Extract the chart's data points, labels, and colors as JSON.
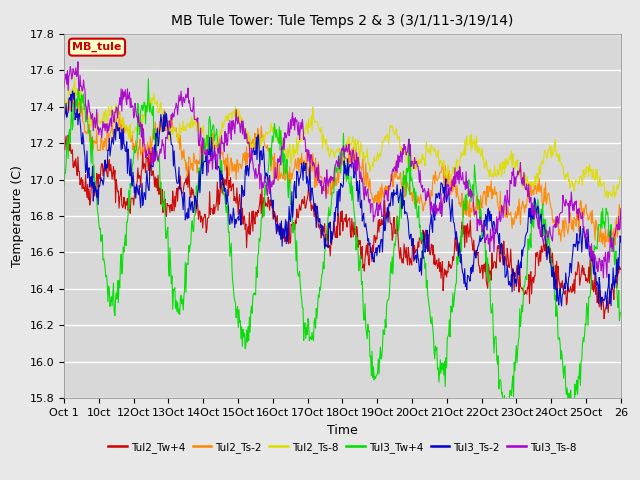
{
  "title": "MB Tule Tower: Tule Temps 2 & 3 (3/1/11-3/19/14)",
  "xlabel": "Time",
  "ylabel": "Temperature (C)",
  "ylim": [
    15.8,
    17.8
  ],
  "yticks": [
    15.8,
    16.0,
    16.2,
    16.4,
    16.6,
    16.8,
    17.0,
    17.2,
    17.4,
    17.6,
    17.8
  ],
  "xtick_labels": [
    "Oct 1",
    "10ct",
    "12Oct",
    "13Oct",
    "14Oct",
    "15Oct",
    "16Oct",
    "17Oct",
    "18Oct",
    "19Oct",
    "20Oct",
    "21Oct",
    "22Oct",
    "23Oct",
    "24Oct",
    "25Oct",
    "26"
  ],
  "n_points": 800,
  "series": [
    {
      "name": "Tul2_Tw+4",
      "color": "#cc0000",
      "base": 17.05,
      "amp": 0.1,
      "trend": -0.65,
      "noise": 0.04
    },
    {
      "name": "Tul2_Ts-2",
      "color": "#ff8800",
      "base": 17.3,
      "amp": 0.08,
      "trend": -0.55,
      "noise": 0.035
    },
    {
      "name": "Tul2_Ts-8",
      "color": "#dddd00",
      "base": 17.38,
      "amp": 0.07,
      "trend": -0.38,
      "noise": 0.025
    },
    {
      "name": "Tul3_Tw+4",
      "color": "#00dd00",
      "base": 17.0,
      "amp": 0.5,
      "trend": -0.75,
      "noise": 0.05
    },
    {
      "name": "Tul3_Ts-2",
      "color": "#0000cc",
      "base": 17.18,
      "amp": 0.2,
      "trend": -0.68,
      "noise": 0.04
    },
    {
      "name": "Tul3_Ts-8",
      "color": "#aa00cc",
      "base": 17.42,
      "amp": 0.15,
      "trend": -0.72,
      "noise": 0.035
    }
  ],
  "bg_color": "#e8e8e8",
  "plot_bg_color": "#d8d8d8",
  "grid_color": "#ffffff",
  "title_fontsize": 10,
  "axis_fontsize": 9,
  "tick_fontsize": 8,
  "mb_box_facecolor": "#ffffcc",
  "mb_box_edgecolor": "#cc0000"
}
